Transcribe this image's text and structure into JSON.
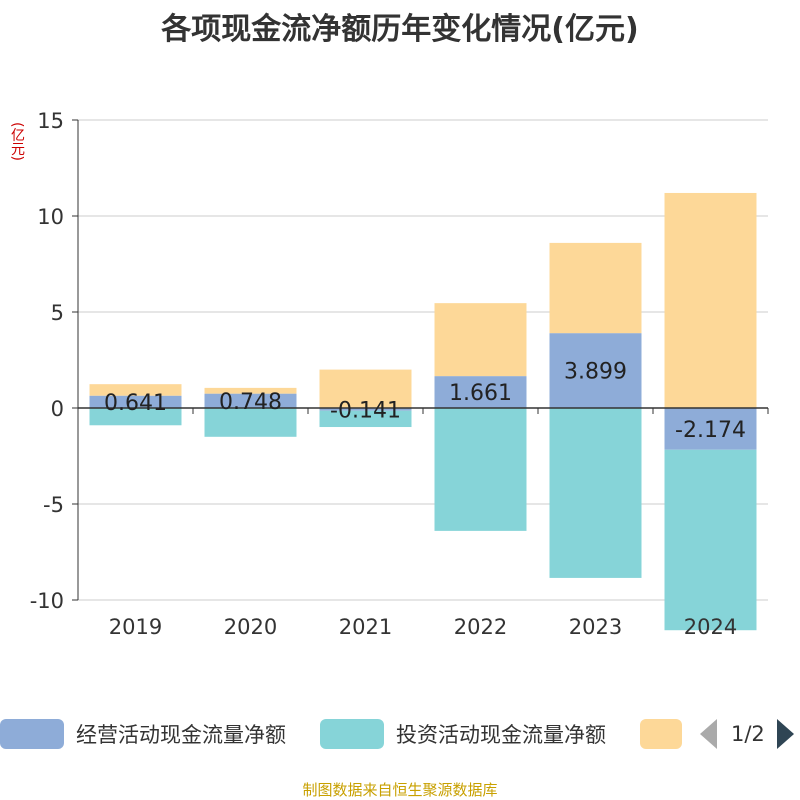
{
  "chart_data": {
    "type": "bar",
    "stacked": true,
    "title": "各项现金流净额历年变化情况(亿元)",
    "ylabel": "(亿元)",
    "categories": [
      "2019",
      "2020",
      "2021",
      "2022",
      "2023",
      "2024"
    ],
    "ylim": [
      -10,
      15
    ],
    "yticks": [
      15,
      10,
      5,
      0,
      -5,
      -10
    ],
    "series": [
      {
        "name": "经营活动现金流量净额",
        "color": "#8eacd8",
        "values": [
          0.641,
          0.748,
          -0.141,
          1.661,
          3.899,
          -2.174
        ],
        "labels": [
          "0.641",
          "0.748",
          "-0.141",
          "1.661",
          "3.899",
          "-2.174"
        ]
      },
      {
        "name": "投资活动现金流量净额",
        "color": "#86d4d8",
        "values": [
          -0.9,
          -1.5,
          -0.85,
          -6.4,
          -8.85,
          -9.4
        ]
      },
      {
        "name": "",
        "color": "#fdd898",
        "values": [
          0.6,
          0.3,
          2.0,
          3.8,
          4.7,
          11.2
        ]
      }
    ]
  },
  "legend": {
    "page": "1/2"
  },
  "source": "制图数据来自恒生聚源数据库"
}
